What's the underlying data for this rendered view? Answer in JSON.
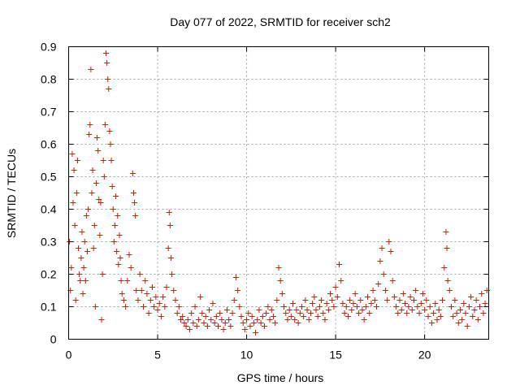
{
  "chart_data": {
    "type": "scatter",
    "title": "Day 077 of 2022, SRMTID for receiver sch2",
    "xlabel": "GPS time / hours",
    "ylabel": "SRMTID / TECUs",
    "xlim": [
      0,
      23.6
    ],
    "ylim": [
      0,
      0.9
    ],
    "grid": true,
    "marker": "+",
    "marker_color": "#ff0000",
    "x_ticks": [
      0,
      5,
      10,
      15,
      20
    ],
    "x_tick_labels": [
      "0",
      "5",
      "10",
      "15",
      "20"
    ],
    "y_ticks": [
      0,
      0.1,
      0.2,
      0.3,
      0.4,
      0.5,
      0.6,
      0.7,
      0.8,
      0.9
    ],
    "y_tick_labels": [
      "0",
      "0.1",
      "0.2",
      "0.3",
      "0.4",
      "0.5",
      "0.6",
      "0.7",
      "0.8",
      "0.9"
    ],
    "series": [
      {
        "name": "sch2",
        "points": [
          [
            0.05,
            0.3
          ],
          [
            0.1,
            0.15
          ],
          [
            0.15,
            0.22
          ],
          [
            0.2,
            0.57
          ],
          [
            0.25,
            0.42
          ],
          [
            0.3,
            0.52
          ],
          [
            0.35,
            0.35
          ],
          [
            0.4,
            0.12
          ],
          [
            0.45,
            0.45
          ],
          [
            0.5,
            0.55
          ],
          [
            0.55,
            0.28
          ],
          [
            0.6,
            0.2
          ],
          [
            0.65,
            0.18
          ],
          [
            0.7,
            0.25
          ],
          [
            0.75,
            0.33
          ],
          [
            0.8,
            0.14
          ],
          [
            0.85,
            0.22
          ],
          [
            0.9,
            0.3
          ],
          [
            0.95,
            0.18
          ],
          [
            1.0,
            0.38
          ],
          [
            1.05,
            0.27
          ],
          [
            1.1,
            0.4
          ],
          [
            1.15,
            0.63
          ],
          [
            1.2,
            0.66
          ],
          [
            1.25,
            0.83
          ],
          [
            1.3,
            0.45
          ],
          [
            1.35,
            0.52
          ],
          [
            1.4,
            0.28
          ],
          [
            1.45,
            0.35
          ],
          [
            1.5,
            0.1
          ],
          [
            1.55,
            0.48
          ],
          [
            1.6,
            0.62
          ],
          [
            1.65,
            0.58
          ],
          [
            1.7,
            0.43
          ],
          [
            1.75,
            0.32
          ],
          [
            1.8,
            0.42
          ],
          [
            1.85,
            0.06
          ],
          [
            1.9,
            0.2
          ],
          [
            1.95,
            0.55
          ],
          [
            2.0,
            0.5
          ],
          [
            2.05,
            0.66
          ],
          [
            2.1,
            0.88
          ],
          [
            2.15,
            0.85
          ],
          [
            2.2,
            0.8
          ],
          [
            2.25,
            0.77
          ],
          [
            2.3,
            0.64
          ],
          [
            2.35,
            0.6
          ],
          [
            2.4,
            0.55
          ],
          [
            2.45,
            0.47
          ],
          [
            2.5,
            0.4
          ],
          [
            2.55,
            0.3
          ],
          [
            2.6,
            0.35
          ],
          [
            2.65,
            0.44
          ],
          [
            2.7,
            0.27
          ],
          [
            2.75,
            0.38
          ],
          [
            2.8,
            0.23
          ],
          [
            2.85,
            0.32
          ],
          [
            2.9,
            0.25
          ],
          [
            2.95,
            0.18
          ],
          [
            3.0,
            0.14
          ],
          [
            3.1,
            0.12
          ],
          [
            3.2,
            0.1
          ],
          [
            3.3,
            0.18
          ],
          [
            3.4,
            0.26
          ],
          [
            3.5,
            0.22
          ],
          [
            3.6,
            0.51
          ],
          [
            3.65,
            0.45
          ],
          [
            3.7,
            0.42
          ],
          [
            3.75,
            0.38
          ],
          [
            3.8,
            0.15
          ],
          [
            3.9,
            0.12
          ],
          [
            4.0,
            0.2
          ],
          [
            4.1,
            0.15
          ],
          [
            4.2,
            0.1
          ],
          [
            4.3,
            0.18
          ],
          [
            4.4,
            0.14
          ],
          [
            4.5,
            0.08
          ],
          [
            4.6,
            0.12
          ],
          [
            4.7,
            0.16
          ],
          [
            4.8,
            0.1
          ],
          [
            4.9,
            0.13
          ],
          [
            5.0,
            0.09
          ],
          [
            5.1,
            0.11
          ],
          [
            5.2,
            0.07
          ],
          [
            5.3,
            0.13
          ],
          [
            5.4,
            0.1
          ],
          [
            5.5,
            0.16
          ],
          [
            5.6,
            0.28
          ],
          [
            5.65,
            0.39
          ],
          [
            5.7,
            0.35
          ],
          [
            5.75,
            0.25
          ],
          [
            5.8,
            0.2
          ],
          [
            5.9,
            0.15
          ],
          [
            6.0,
            0.12
          ],
          [
            6.1,
            0.08
          ],
          [
            6.2,
            0.1
          ],
          [
            6.3,
            0.06
          ],
          [
            6.4,
            0.07
          ],
          [
            6.5,
            0.05
          ],
          [
            6.6,
            0.04
          ],
          [
            6.7,
            0.06
          ],
          [
            6.8,
            0.03
          ],
          [
            6.9,
            0.08
          ],
          [
            7.0,
            0.05
          ],
          [
            7.1,
            0.1
          ],
          [
            7.2,
            0.04
          ],
          [
            7.3,
            0.06
          ],
          [
            7.4,
            0.13
          ],
          [
            7.5,
            0.08
          ],
          [
            7.6,
            0.05
          ],
          [
            7.7,
            0.07
          ],
          [
            7.8,
            0.04
          ],
          [
            7.9,
            0.09
          ],
          [
            8.0,
            0.06
          ],
          [
            8.1,
            0.11
          ],
          [
            8.2,
            0.05
          ],
          [
            8.3,
            0.07
          ],
          [
            8.4,
            0.04
          ],
          [
            8.5,
            0.08
          ],
          [
            8.6,
            0.06
          ],
          [
            8.7,
            0.03
          ],
          [
            8.8,
            0.05
          ],
          [
            8.9,
            0.09
          ],
          [
            9.0,
            0.06
          ],
          [
            9.1,
            0.04
          ],
          [
            9.2,
            0.08
          ],
          [
            9.3,
            0.12
          ],
          [
            9.4,
            0.19
          ],
          [
            9.5,
            0.15
          ],
          [
            9.6,
            0.1
          ],
          [
            9.7,
            0.07
          ],
          [
            9.8,
            0.05
          ],
          [
            9.9,
            0.03
          ],
          [
            10.0,
            0.06
          ],
          [
            10.1,
            0.08
          ],
          [
            10.2,
            0.04
          ],
          [
            10.3,
            0.07
          ],
          [
            10.4,
            0.05
          ],
          [
            10.5,
            0.02
          ],
          [
            10.6,
            0.06
          ],
          [
            10.7,
            0.09
          ],
          [
            10.8,
            0.05
          ],
          [
            10.9,
            0.07
          ],
          [
            11.0,
            0.04
          ],
          [
            11.1,
            0.08
          ],
          [
            11.2,
            0.1
          ],
          [
            11.3,
            0.06
          ],
          [
            11.4,
            0.09
          ],
          [
            11.5,
            0.07
          ],
          [
            11.6,
            0.05
          ],
          [
            11.7,
            0.12
          ],
          [
            11.8,
            0.22
          ],
          [
            11.9,
            0.18
          ],
          [
            12.0,
            0.14
          ],
          [
            12.1,
            0.1
          ],
          [
            12.2,
            0.08
          ],
          [
            12.3,
            0.06
          ],
          [
            12.4,
            0.09
          ],
          [
            12.5,
            0.07
          ],
          [
            12.6,
            0.11
          ],
          [
            12.7,
            0.06
          ],
          [
            12.8,
            0.09
          ],
          [
            12.9,
            0.05
          ],
          [
            13.0,
            0.08
          ],
          [
            13.1,
            0.1
          ],
          [
            13.2,
            0.07
          ],
          [
            13.3,
            0.12
          ],
          [
            13.4,
            0.09
          ],
          [
            13.5,
            0.06
          ],
          [
            13.6,
            0.08
          ],
          [
            13.7,
            0.11
          ],
          [
            13.8,
            0.13
          ],
          [
            13.9,
            0.09
          ],
          [
            14.0,
            0.07
          ],
          [
            14.1,
            0.1
          ],
          [
            14.2,
            0.12
          ],
          [
            14.3,
            0.08
          ],
          [
            14.4,
            0.06
          ],
          [
            14.5,
            0.11
          ],
          [
            14.6,
            0.09
          ],
          [
            14.7,
            0.14
          ],
          [
            14.8,
            0.12
          ],
          [
            14.9,
            0.1
          ],
          [
            15.0,
            0.16
          ],
          [
            15.1,
            0.13
          ],
          [
            15.2,
            0.23
          ],
          [
            15.3,
            0.18
          ],
          [
            15.4,
            0.11
          ],
          [
            15.5,
            0.08
          ],
          [
            15.6,
            0.1
          ],
          [
            15.7,
            0.07
          ],
          [
            15.8,
            0.12
          ],
          [
            15.9,
            0.09
          ],
          [
            16.0,
            0.11
          ],
          [
            16.1,
            0.14
          ],
          [
            16.2,
            0.1
          ],
          [
            16.3,
            0.08
          ],
          [
            16.4,
            0.12
          ],
          [
            16.5,
            0.09
          ],
          [
            16.6,
            0.06
          ],
          [
            16.7,
            0.1
          ],
          [
            16.8,
            0.13
          ],
          [
            16.9,
            0.08
          ],
          [
            17.0,
            0.11
          ],
          [
            17.1,
            0.15
          ],
          [
            17.2,
            0.12
          ],
          [
            17.3,
            0.1
          ],
          [
            17.4,
            0.17
          ],
          [
            17.5,
            0.24
          ],
          [
            17.6,
            0.28
          ],
          [
            17.7,
            0.2
          ],
          [
            17.8,
            0.15
          ],
          [
            17.9,
            0.12
          ],
          [
            18.0,
            0.3
          ],
          [
            18.1,
            0.27
          ],
          [
            18.2,
            0.18
          ],
          [
            18.3,
            0.13
          ],
          [
            18.4,
            0.1
          ],
          [
            18.5,
            0.08
          ],
          [
            18.6,
            0.12
          ],
          [
            18.7,
            0.09
          ],
          [
            18.8,
            0.14
          ],
          [
            18.9,
            0.11
          ],
          [
            19.0,
            0.08
          ],
          [
            19.1,
            0.1
          ],
          [
            19.2,
            0.13
          ],
          [
            19.3,
            0.09
          ],
          [
            19.4,
            0.12
          ],
          [
            19.5,
            0.15
          ],
          [
            19.6,
            0.1
          ],
          [
            19.7,
            0.08
          ],
          [
            19.8,
            0.11
          ],
          [
            19.9,
            0.14
          ],
          [
            20.0,
            0.09
          ],
          [
            20.1,
            0.12
          ],
          [
            20.2,
            0.07
          ],
          [
            20.3,
            0.1
          ],
          [
            20.4,
            0.05
          ],
          [
            20.5,
            0.08
          ],
          [
            20.6,
            0.11
          ],
          [
            20.7,
            0.06
          ],
          [
            20.8,
            0.09
          ],
          [
            20.9,
            0.07
          ],
          [
            21.0,
            0.12
          ],
          [
            21.1,
            0.22
          ],
          [
            21.2,
            0.33
          ],
          [
            21.25,
            0.28
          ],
          [
            21.3,
            0.18
          ],
          [
            21.4,
            0.15
          ],
          [
            21.5,
            0.1
          ],
          [
            21.6,
            0.07
          ],
          [
            21.7,
            0.12
          ],
          [
            21.8,
            0.08
          ],
          [
            21.9,
            0.05
          ],
          [
            22.0,
            0.09
          ],
          [
            22.1,
            0.06
          ],
          [
            22.2,
            0.11
          ],
          [
            22.3,
            0.08
          ],
          [
            22.4,
            0.04
          ],
          [
            22.5,
            0.1
          ],
          [
            22.6,
            0.13
          ],
          [
            22.7,
            0.07
          ],
          [
            22.8,
            0.09
          ],
          [
            22.9,
            0.12
          ],
          [
            23.0,
            0.06
          ],
          [
            23.1,
            0.1
          ],
          [
            23.2,
            0.14
          ],
          [
            23.3,
            0.08
          ],
          [
            23.4,
            0.11
          ],
          [
            23.5,
            0.15
          ]
        ]
      }
    ]
  }
}
